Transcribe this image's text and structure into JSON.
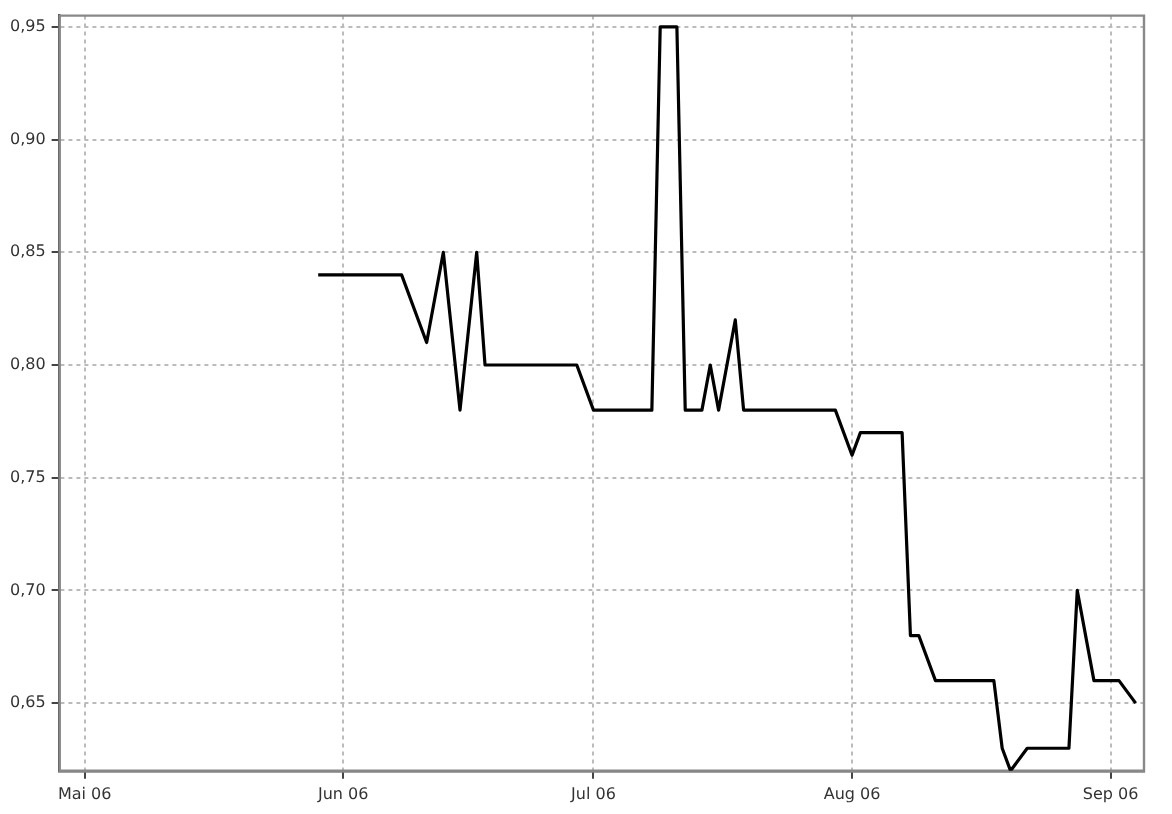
{
  "chart_data": {
    "type": "line",
    "x": [
      "2006-05-29",
      "2006-06-08",
      "2006-06-10",
      "2006-06-11",
      "2006-06-13",
      "2006-06-15",
      "2006-06-17",
      "2006-06-18",
      "2006-06-29",
      "2006-07-01",
      "2006-07-08",
      "2006-07-09",
      "2006-07-11",
      "2006-07-12",
      "2006-07-14",
      "2006-07-15",
      "2006-07-16",
      "2006-07-18",
      "2006-07-19",
      "2006-07-30",
      "2006-08-01",
      "2006-08-02",
      "2006-08-07",
      "2006-08-08",
      "2006-08-09",
      "2006-08-11",
      "2006-08-18",
      "2006-08-19",
      "2006-08-20",
      "2006-08-22",
      "2006-08-27",
      "2006-08-28",
      "2006-08-30",
      "2006-09-02",
      "2006-09-04"
    ],
    "series": [
      {
        "color": "#000000",
        "values": [
          0.84,
          0.84,
          0.82,
          0.81,
          0.85,
          0.78,
          0.85,
          0.8,
          0.8,
          0.78,
          0.78,
          0.95,
          0.95,
          0.78,
          0.78,
          0.8,
          0.78,
          0.82,
          0.78,
          0.78,
          0.76,
          0.77,
          0.77,
          0.68,
          0.68,
          0.66,
          0.66,
          0.63,
          0.62,
          0.63,
          0.63,
          0.7,
          0.66,
          0.66,
          0.65
        ]
      }
    ],
    "xlim": [
      "2006-04-28",
      "2006-09-05"
    ],
    "xticks": [
      {
        "value": "2006-05-01",
        "label": "Mai 06"
      },
      {
        "value": "2006-06-01",
        "label": "Jun 06"
      },
      {
        "value": "2006-07-01",
        "label": "Jul 06"
      },
      {
        "value": "2006-08-01",
        "label": "Aug 06"
      },
      {
        "value": "2006-09-01",
        "label": "Sep 06"
      }
    ],
    "ylim": [
      0.62,
      0.955
    ],
    "yticks": [
      {
        "value": 0.65,
        "label": "0,65"
      },
      {
        "value": 0.7,
        "label": "0,70"
      },
      {
        "value": 0.75,
        "label": "0,75"
      },
      {
        "value": 0.8,
        "label": "0,80"
      },
      {
        "value": 0.85,
        "label": "0,85"
      },
      {
        "value": 0.9,
        "label": "0,90"
      },
      {
        "value": 0.95,
        "label": "0,95"
      }
    ],
    "grid": true,
    "legend": false,
    "marker": "none",
    "line_style": "solid"
  }
}
